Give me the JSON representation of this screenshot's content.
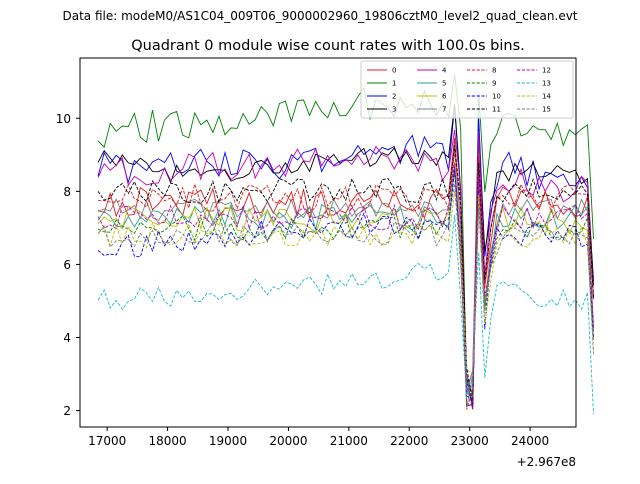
{
  "suptitle": "Data file: modeM0/AS1C04_009T06_9000002960_19806cztM0_level2_quad_clean.evt",
  "chart_data": {
    "type": "line",
    "title": "Quadrant 0 module wise count rates with 100.0s bins.",
    "xlabel": "",
    "ylabel": "",
    "x_offset_label": "+2.967e8",
    "xlim": [
      16550,
      24760
    ],
    "ylim": [
      1.55,
      11.65
    ],
    "xticks": [
      17000,
      18000,
      19000,
      20000,
      21000,
      22000,
      23000,
      24000
    ],
    "yticks": [
      2,
      4,
      6,
      8,
      10
    ],
    "legend_position": "upper right",
    "x_start": 16850,
    "x_step": 100,
    "dip_profile": [
      0,
      0,
      0,
      0,
      0,
      0,
      0,
      0,
      0,
      0,
      0,
      0,
      0,
      0,
      0,
      0,
      0,
      0,
      0,
      0,
      0,
      0,
      0,
      0,
      0,
      0,
      0,
      0,
      0,
      0,
      0,
      0,
      0,
      0,
      0,
      0,
      0,
      0,
      0,
      0,
      0,
      0,
      0,
      0,
      0,
      0,
      0,
      0,
      0,
      0,
      0,
      0,
      0,
      0,
      0,
      0,
      0,
      0,
      0,
      1.5,
      -0.6,
      -5.5,
      -5.0,
      1.0,
      -2.4,
      -1.0,
      -0.2,
      0,
      0,
      0,
      0,
      0,
      0,
      0,
      0,
      0,
      0,
      0,
      0,
      0,
      0,
      0,
      -3.0
    ],
    "series": [
      {
        "name": "0",
        "color": "#e41a1c",
        "dash": "solid",
        "level": 7.7,
        "noise": 0.45,
        "seed": 1
      },
      {
        "name": "1",
        "color": "#008000",
        "dash": "solid",
        "level": 9.4,
        "noise": 0.5,
        "seed": 2,
        "trend": [
          [
            16850,
            0.2
          ],
          [
            21500,
            1.0
          ],
          [
            22500,
            0.8
          ],
          [
            24500,
            0.0
          ]
        ]
      },
      {
        "name": "2",
        "color": "#0000ff",
        "dash": "solid",
        "level": 8.3,
        "noise": 0.45,
        "seed": 3,
        "trend": [
          [
            16850,
            0.3
          ],
          [
            20000,
            0.5
          ],
          [
            21800,
            0.9
          ],
          [
            24500,
            0.1
          ]
        ]
      },
      {
        "name": "3",
        "color": "#000000",
        "dash": "solid",
        "level": 8.4,
        "noise": 0.3,
        "seed": 4,
        "trend": [
          [
            16850,
            0.5
          ],
          [
            18500,
            0.0
          ],
          [
            21500,
            0.6
          ],
          [
            24500,
            0.0
          ]
        ]
      },
      {
        "name": "4",
        "color": "#bf00bf",
        "dash": "solid",
        "level": 8.1,
        "noise": 0.4,
        "seed": 5,
        "trend": [
          [
            16850,
            0.4
          ],
          [
            21500,
            0.8
          ],
          [
            24500,
            0.0
          ]
        ]
      },
      {
        "name": "5",
        "color": "#2ca089",
        "dash": "solid",
        "level": 7.3,
        "noise": 0.35,
        "seed": 6
      },
      {
        "name": "6",
        "color": "#bfbf00",
        "dash": "solid",
        "level": 7.2,
        "noise": 0.4,
        "seed": 7
      },
      {
        "name": "7",
        "color": "#808080",
        "dash": "solid",
        "level": 7.5,
        "noise": 0.3,
        "seed": 8
      },
      {
        "name": "8",
        "color": "#e41a1c",
        "dash": "dashed",
        "level": 7.8,
        "noise": 0.4,
        "seed": 9
      },
      {
        "name": "9",
        "color": "#008000",
        "dash": "dashed",
        "level": 7.0,
        "noise": 0.35,
        "seed": 10
      },
      {
        "name": "10",
        "color": "#0000ff",
        "dash": "dashed",
        "level": 6.4,
        "noise": 0.35,
        "seed": 11,
        "trend": [
          [
            16850,
            0.0
          ],
          [
            20500,
            0.7
          ],
          [
            24500,
            0.4
          ]
        ]
      },
      {
        "name": "11",
        "color": "#000000",
        "dash": "dashed",
        "level": 8.0,
        "noise": 0.35,
        "seed": 12
      },
      {
        "name": "12",
        "color": "#bf00bf",
        "dash": "dashed",
        "level": 7.3,
        "noise": 0.35,
        "seed": 13
      },
      {
        "name": "13",
        "color": "#17becf",
        "dash": "dashed",
        "level": 5.0,
        "noise": 0.3,
        "seed": 14,
        "trend": [
          [
            16850,
            0.0
          ],
          [
            21000,
            0.5
          ],
          [
            22500,
            0.8
          ],
          [
            24500,
            0.0
          ]
        ]
      },
      {
        "name": "14",
        "color": "#bfbf00",
        "dash": "dashed",
        "level": 6.8,
        "noise": 0.35,
        "seed": 15
      },
      {
        "name": "15",
        "color": "#808080",
        "dash": "dashed",
        "level": 6.8,
        "noise": 0.35,
        "seed": 16
      }
    ]
  }
}
